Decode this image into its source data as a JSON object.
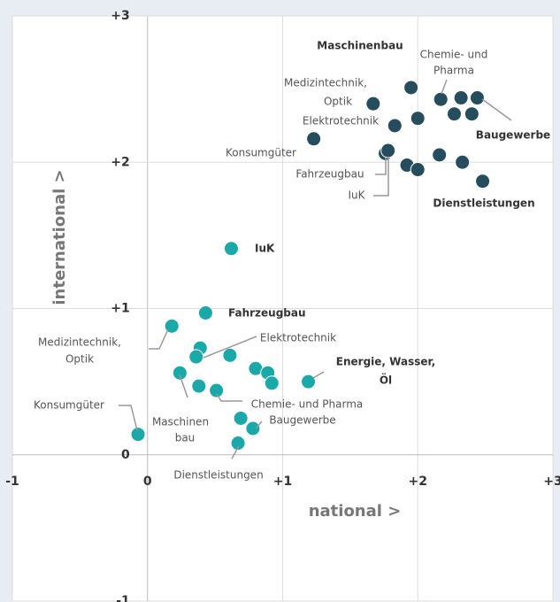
{
  "chart_data": {
    "type": "scatter",
    "xlabel": "national >",
    "ylabel": "international >",
    "xlim": [
      -1,
      3
    ],
    "ylim": [
      -1,
      3
    ],
    "xticks": [
      -1,
      0,
      {
        "value": 1,
        "label": "+1"
      },
      {
        "value": 2,
        "label": "+2"
      },
      {
        "value": 3,
        "label": "+3"
      }
    ],
    "yticks": [
      -1,
      0,
      {
        "value": 1,
        "label": "+1"
      },
      {
        "value": 2,
        "label": "+2"
      },
      {
        "value": 3,
        "label": "+3"
      }
    ],
    "grid": true,
    "series": [
      {
        "color": "#264d5e",
        "x": [
          1.95,
          1.67,
          2.17,
          2.32,
          2.44,
          2.27,
          2.4,
          2.0,
          1.83,
          1.23,
          1.76,
          1.78,
          1.92,
          2.0,
          2.16,
          2.33,
          2.48
        ],
        "values": [
          2.51,
          2.4,
          2.43,
          2.44,
          2.44,
          2.33,
          2.33,
          2.3,
          2.25,
          2.16,
          2.06,
          2.08,
          1.98,
          1.95,
          2.05,
          2.0,
          1.87
        ]
      },
      {
        "color": "#1aa8a8",
        "x": [
          0.62,
          0.43,
          0.18,
          0.39,
          0.36,
          0.61,
          0.24,
          0.8,
          0.89,
          0.92,
          1.19,
          0.38,
          0.51,
          0.69,
          0.78,
          0.67,
          -0.07
        ],
        "values": [
          1.41,
          0.97,
          0.88,
          0.73,
          0.67,
          0.68,
          0.56,
          0.59,
          0.56,
          0.49,
          0.5,
          0.47,
          0.44,
          0.25,
          0.18,
          0.08,
          0.14
        ]
      }
    ],
    "annotations": [
      "Maschinenbau",
      "Chemie- und",
      "Pharma",
      "Medizintechnik,",
      "Optik",
      "Elektrotechnik",
      "Baugewerbe",
      "Konsumgüter",
      "Fahrzeugbau",
      "IuK",
      "Dienstleistungen",
      "IuK",
      "Fahrzeugbau",
      "Medizintechnik,",
      "Optik",
      "Elektrotechnik",
      "Energie, Wasser,",
      "Öl",
      "Konsumgüter",
      "Maschinen",
      "bau",
      "Chemie- und Pharma",
      "Baugewerbe",
      "Dienstleistungen"
    ]
  }
}
